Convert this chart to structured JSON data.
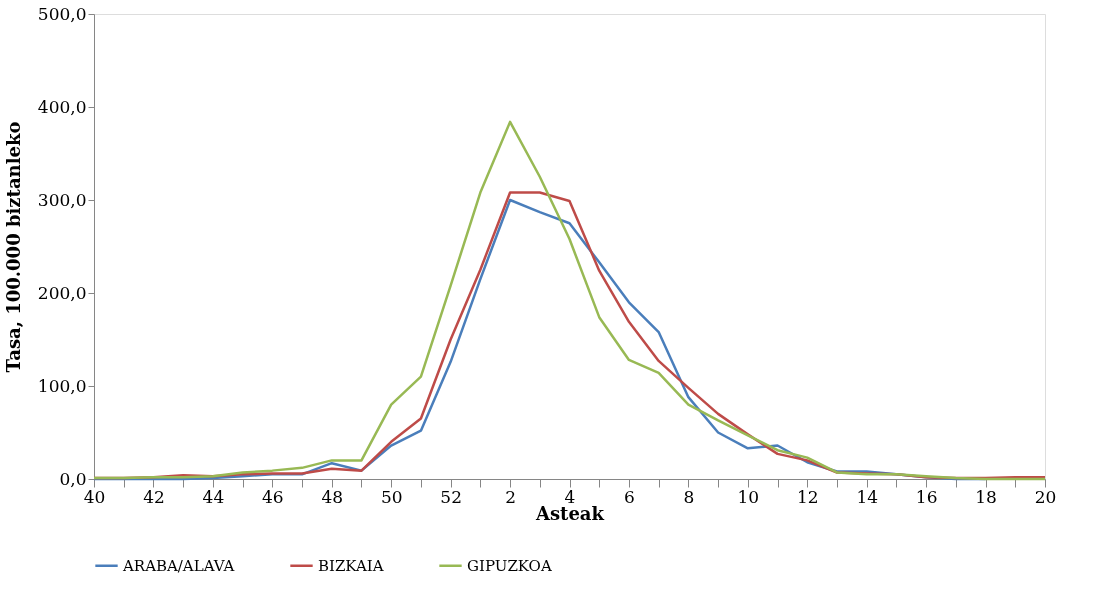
{
  "chart_data": {
    "type": "line",
    "xlabel": "Asteak",
    "ylabel": "Tasa, 100.000 biztanleko",
    "categories": [
      "40",
      null,
      "42",
      null,
      "44",
      null,
      "46",
      null,
      "48",
      null,
      "50",
      null,
      "52",
      null,
      "2",
      null,
      "4",
      null,
      "6",
      null,
      "8",
      null,
      "10",
      null,
      "12",
      null,
      "14",
      null,
      "16",
      null,
      "18",
      null,
      "20"
    ],
    "series": [
      {
        "name": "ARABA/ALAVA",
        "color": "#4a7ebb",
        "values": [
          0,
          0,
          0,
          0,
          1,
          3,
          5,
          5,
          17,
          9,
          36,
          52,
          126,
          215,
          300,
          287,
          275,
          233,
          190,
          158,
          88,
          50,
          33,
          36,
          18,
          8,
          8,
          5,
          2,
          0,
          0,
          null,
          null
        ]
      },
      {
        "name": "BIZKAIA",
        "color": "#be4b48",
        "values": [
          1,
          1,
          2,
          4,
          3,
          5,
          6,
          6,
          11,
          9,
          40,
          65,
          150,
          225,
          308,
          308,
          299,
          224,
          169,
          127,
          98,
          70,
          48,
          27,
          20,
          7,
          6,
          5,
          2,
          1,
          1,
          2,
          2
        ]
      },
      {
        "name": "GIPUZKOA",
        "color": "#98b954",
        "values": [
          1,
          1,
          2,
          2,
          3,
          7,
          9,
          12,
          20,
          20,
          80,
          110,
          208,
          308,
          384,
          325,
          258,
          174,
          128,
          114,
          80,
          63,
          47,
          31,
          23,
          7,
          5,
          5,
          3,
          1,
          0,
          0,
          0
        ]
      }
    ],
    "ylim": [
      0,
      500
    ],
    "yticks": [
      {
        "value": 0,
        "label": "0,0"
      },
      {
        "value": 100,
        "label": "100,0"
      },
      {
        "value": 200,
        "label": "200,0"
      },
      {
        "value": 300,
        "label": "300,0"
      },
      {
        "value": 400,
        "label": "400,0"
      },
      {
        "value": 500,
        "label": "500,0"
      }
    ],
    "grid": false,
    "legend": "bottom",
    "marker": "none",
    "line_style": "solid"
  }
}
